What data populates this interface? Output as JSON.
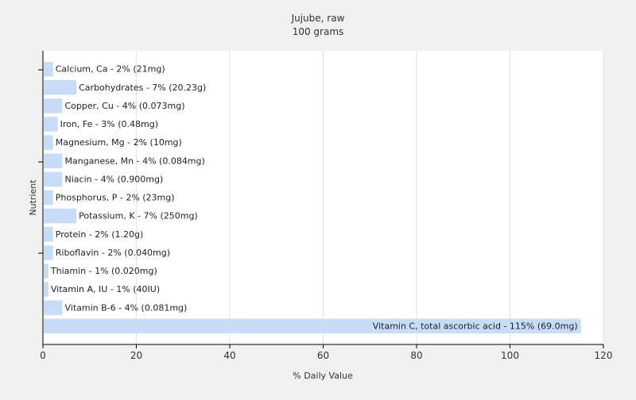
{
  "chart_data": {
    "type": "bar",
    "orientation": "horizontal",
    "title": "Jujube, raw",
    "subtitle": "100 grams",
    "xlabel": "% Daily Value",
    "ylabel": "Nutrient",
    "xlim": [
      0,
      120
    ],
    "x_ticks": [
      0,
      20,
      40,
      60,
      80,
      100,
      120
    ],
    "grid": true,
    "bar_color": "#c6dcf7",
    "categories": [
      "Calcium, Ca",
      "Carbohydrates",
      "Copper, Cu",
      "Iron, Fe",
      "Magnesium, Mg",
      "Manganese, Mn",
      "Niacin",
      "Phosphorus, P",
      "Potassium, K",
      "Protein",
      "Riboflavin",
      "Thiamin",
      "Vitamin A, IU",
      "Vitamin B-6",
      "Vitamin C, total ascorbic acid"
    ],
    "values": [
      2,
      7,
      4,
      3,
      2,
      4,
      4,
      2,
      7,
      2,
      2,
      1,
      1,
      4,
      115
    ],
    "labels": [
      "Calcium, Ca - 2% (21mg)",
      "Carbohydrates - 7% (20.23g)",
      "Copper, Cu - 4% (0.073mg)",
      "Iron, Fe - 3% (0.48mg)",
      "Magnesium, Mg - 2% (10mg)",
      "Manganese, Mn - 4% (0.084mg)",
      "Niacin - 4% (0.900mg)",
      "Phosphorus, P - 2% (23mg)",
      "Potassium, K - 7% (250mg)",
      "Protein - 2% (1.20g)",
      "Riboflavin - 2% (0.040mg)",
      "Thiamin - 1% (0.020mg)",
      "Vitamin A, IU - 1% (40IU)",
      "Vitamin B-6 - 4% (0.081mg)",
      "Vitamin C, total ascorbic acid - 115% (69.0mg)"
    ]
  }
}
